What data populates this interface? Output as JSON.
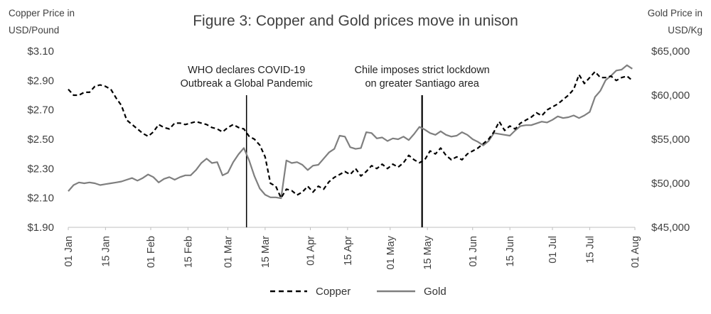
{
  "chart_data": {
    "type": "line",
    "title": "Figure 3: Copper and Gold prices move in unison",
    "left_axis": {
      "title_lines": [
        "Copper Price in",
        "USD/Pound"
      ],
      "ticks": [
        "$3.10",
        "$2.90",
        "$2.70",
        "$2.50",
        "$2.30",
        "$2.10",
        "$1.90"
      ],
      "ylim": [
        1.9,
        3.1
      ]
    },
    "right_axis": {
      "title_lines": [
        "Gold Price in",
        "USD/Kg"
      ],
      "ticks": [
        "$65,000",
        "$60,000",
        "$55,000",
        "$50,000",
        "$45,000"
      ],
      "ylim": [
        45000,
        65000
      ]
    },
    "x_axis": {
      "start": "2020-01-01",
      "end": "2020-08-01",
      "tick_labels": [
        {
          "label": "01 Jan",
          "day": 0
        },
        {
          "label": "15 Jan",
          "day": 14
        },
        {
          "label": "01 Feb",
          "day": 31
        },
        {
          "label": "15 Feb",
          "day": 45
        },
        {
          "label": "01 Mar",
          "day": 60
        },
        {
          "label": "15 Mar",
          "day": 74
        },
        {
          "label": "01 Apr",
          "day": 91
        },
        {
          "label": "15 Apr",
          "day": 105
        },
        {
          "label": "01 May",
          "day": 121
        },
        {
          "label": "15 May",
          "day": 135
        },
        {
          "label": "01 Jun",
          "day": 152
        },
        {
          "label": "15 Jun",
          "day": 166
        },
        {
          "label": "01 Jul",
          "day": 182
        },
        {
          "label": "15 Jul",
          "day": 196
        },
        {
          "label": "01 Aug",
          "day": 213
        }
      ]
    },
    "annotations": [
      {
        "day": 67,
        "lines": [
          "WHO declares COVID-19",
          "Outbreak a Global Pandemic"
        ]
      },
      {
        "day": 133,
        "lines": [
          "Chile imposes strict lockdown",
          "on greater Santiago area"
        ]
      }
    ],
    "series": [
      {
        "name": "Copper",
        "axis": "left",
        "style": "dashed",
        "color": "#000000",
        "points": [
          [
            0,
            2.84
          ],
          [
            2,
            2.8
          ],
          [
            4,
            2.8
          ],
          [
            6,
            2.82
          ],
          [
            8,
            2.82
          ],
          [
            10,
            2.86
          ],
          [
            12,
            2.87
          ],
          [
            14,
            2.86
          ],
          [
            16,
            2.84
          ],
          [
            18,
            2.78
          ],
          [
            20,
            2.73
          ],
          [
            22,
            2.63
          ],
          [
            24,
            2.6
          ],
          [
            26,
            2.57
          ],
          [
            28,
            2.54
          ],
          [
            30,
            2.52
          ],
          [
            32,
            2.55
          ],
          [
            34,
            2.6
          ],
          [
            36,
            2.58
          ],
          [
            38,
            2.57
          ],
          [
            40,
            2.61
          ],
          [
            42,
            2.61
          ],
          [
            44,
            2.6
          ],
          [
            46,
            2.61
          ],
          [
            48,
            2.62
          ],
          [
            50,
            2.61
          ],
          [
            52,
            2.6
          ],
          [
            54,
            2.58
          ],
          [
            56,
            2.57
          ],
          [
            58,
            2.55
          ],
          [
            60,
            2.58
          ],
          [
            62,
            2.6
          ],
          [
            64,
            2.58
          ],
          [
            66,
            2.57
          ],
          [
            68,
            2.52
          ],
          [
            70,
            2.5
          ],
          [
            72,
            2.46
          ],
          [
            74,
            2.38
          ],
          [
            76,
            2.2
          ],
          [
            78,
            2.18
          ],
          [
            80,
            2.1
          ],
          [
            82,
            2.16
          ],
          [
            84,
            2.15
          ],
          [
            86,
            2.12
          ],
          [
            88,
            2.14
          ],
          [
            90,
            2.18
          ],
          [
            92,
            2.14
          ],
          [
            94,
            2.18
          ],
          [
            96,
            2.16
          ],
          [
            98,
            2.21
          ],
          [
            100,
            2.24
          ],
          [
            102,
            2.26
          ],
          [
            104,
            2.28
          ],
          [
            106,
            2.26
          ],
          [
            108,
            2.3
          ],
          [
            110,
            2.25
          ],
          [
            112,
            2.28
          ],
          [
            114,
            2.32
          ],
          [
            116,
            2.3
          ],
          [
            118,
            2.33
          ],
          [
            120,
            2.3
          ],
          [
            122,
            2.33
          ],
          [
            124,
            2.31
          ],
          [
            126,
            2.34
          ],
          [
            128,
            2.39
          ],
          [
            130,
            2.36
          ],
          [
            132,
            2.34
          ],
          [
            134,
            2.36
          ],
          [
            136,
            2.42
          ],
          [
            138,
            2.4
          ],
          [
            140,
            2.44
          ],
          [
            142,
            2.39
          ],
          [
            144,
            2.36
          ],
          [
            146,
            2.38
          ],
          [
            148,
            2.36
          ],
          [
            150,
            2.4
          ],
          [
            152,
            2.42
          ],
          [
            154,
            2.44
          ],
          [
            156,
            2.47
          ],
          [
            158,
            2.5
          ],
          [
            160,
            2.55
          ],
          [
            162,
            2.62
          ],
          [
            164,
            2.56
          ],
          [
            166,
            2.59
          ],
          [
            168,
            2.57
          ],
          [
            170,
            2.61
          ],
          [
            172,
            2.63
          ],
          [
            174,
            2.65
          ],
          [
            176,
            2.68
          ],
          [
            178,
            2.66
          ],
          [
            180,
            2.7
          ],
          [
            182,
            2.72
          ],
          [
            184,
            2.74
          ],
          [
            186,
            2.77
          ],
          [
            188,
            2.8
          ],
          [
            190,
            2.84
          ],
          [
            192,
            2.94
          ],
          [
            194,
            2.88
          ],
          [
            196,
            2.92
          ],
          [
            198,
            2.96
          ],
          [
            200,
            2.92
          ],
          [
            202,
            2.92
          ],
          [
            204,
            2.93
          ],
          [
            206,
            2.9
          ],
          [
            208,
            2.92
          ],
          [
            210,
            2.93
          ],
          [
            212,
            2.9
          ]
        ]
      },
      {
        "name": "Gold",
        "axis": "right",
        "style": "solid",
        "color": "#7f7f7f",
        "points": [
          [
            0,
            49100
          ],
          [
            2,
            49800
          ],
          [
            4,
            50100
          ],
          [
            6,
            50000
          ],
          [
            8,
            50100
          ],
          [
            10,
            50000
          ],
          [
            12,
            49800
          ],
          [
            14,
            49900
          ],
          [
            16,
            50000
          ],
          [
            18,
            50100
          ],
          [
            20,
            50200
          ],
          [
            22,
            50400
          ],
          [
            24,
            50600
          ],
          [
            26,
            50300
          ],
          [
            28,
            50600
          ],
          [
            30,
            51000
          ],
          [
            32,
            50700
          ],
          [
            34,
            50100
          ],
          [
            36,
            50500
          ],
          [
            38,
            50700
          ],
          [
            40,
            50400
          ],
          [
            42,
            50700
          ],
          [
            44,
            50900
          ],
          [
            46,
            50900
          ],
          [
            48,
            51500
          ],
          [
            50,
            52300
          ],
          [
            52,
            52800
          ],
          [
            54,
            52300
          ],
          [
            56,
            52400
          ],
          [
            58,
            50900
          ],
          [
            60,
            51200
          ],
          [
            62,
            52400
          ],
          [
            64,
            53300
          ],
          [
            66,
            54000
          ],
          [
            68,
            52600
          ],
          [
            70,
            50800
          ],
          [
            72,
            49400
          ],
          [
            74,
            48700
          ],
          [
            76,
            48400
          ],
          [
            78,
            48400
          ],
          [
            80,
            48300
          ],
          [
            82,
            52600
          ],
          [
            84,
            52300
          ],
          [
            86,
            52400
          ],
          [
            88,
            52100
          ],
          [
            90,
            51500
          ],
          [
            92,
            52000
          ],
          [
            94,
            52100
          ],
          [
            96,
            52800
          ],
          [
            98,
            53500
          ],
          [
            100,
            53900
          ],
          [
            102,
            55400
          ],
          [
            104,
            55300
          ],
          [
            106,
            54100
          ],
          [
            108,
            53900
          ],
          [
            110,
            54000
          ],
          [
            112,
            55800
          ],
          [
            114,
            55700
          ],
          [
            116,
            55100
          ],
          [
            118,
            55200
          ],
          [
            120,
            54800
          ],
          [
            122,
            55100
          ],
          [
            124,
            55000
          ],
          [
            126,
            55300
          ],
          [
            128,
            54900
          ],
          [
            130,
            55600
          ],
          [
            132,
            56400
          ],
          [
            134,
            56100
          ],
          [
            136,
            55700
          ],
          [
            138,
            55500
          ],
          [
            140,
            55900
          ],
          [
            142,
            55500
          ],
          [
            144,
            55300
          ],
          [
            146,
            55400
          ],
          [
            148,
            55800
          ],
          [
            150,
            55500
          ],
          [
            152,
            55000
          ],
          [
            154,
            54700
          ],
          [
            156,
            54300
          ],
          [
            158,
            54800
          ],
          [
            160,
            55700
          ],
          [
            162,
            55600
          ],
          [
            164,
            55500
          ],
          [
            166,
            55400
          ],
          [
            168,
            56000
          ],
          [
            170,
            56500
          ],
          [
            172,
            56600
          ],
          [
            174,
            56600
          ],
          [
            176,
            56800
          ],
          [
            178,
            57000
          ],
          [
            180,
            56900
          ],
          [
            182,
            57200
          ],
          [
            184,
            57600
          ],
          [
            186,
            57400
          ],
          [
            188,
            57500
          ],
          [
            190,
            57700
          ],
          [
            192,
            57400
          ],
          [
            194,
            57700
          ],
          [
            196,
            58100
          ],
          [
            198,
            59800
          ],
          [
            200,
            60500
          ],
          [
            202,
            61700
          ],
          [
            204,
            62200
          ],
          [
            206,
            62800
          ],
          [
            208,
            62900
          ],
          [
            210,
            63400
          ],
          [
            212,
            63000
          ]
        ]
      }
    ]
  }
}
